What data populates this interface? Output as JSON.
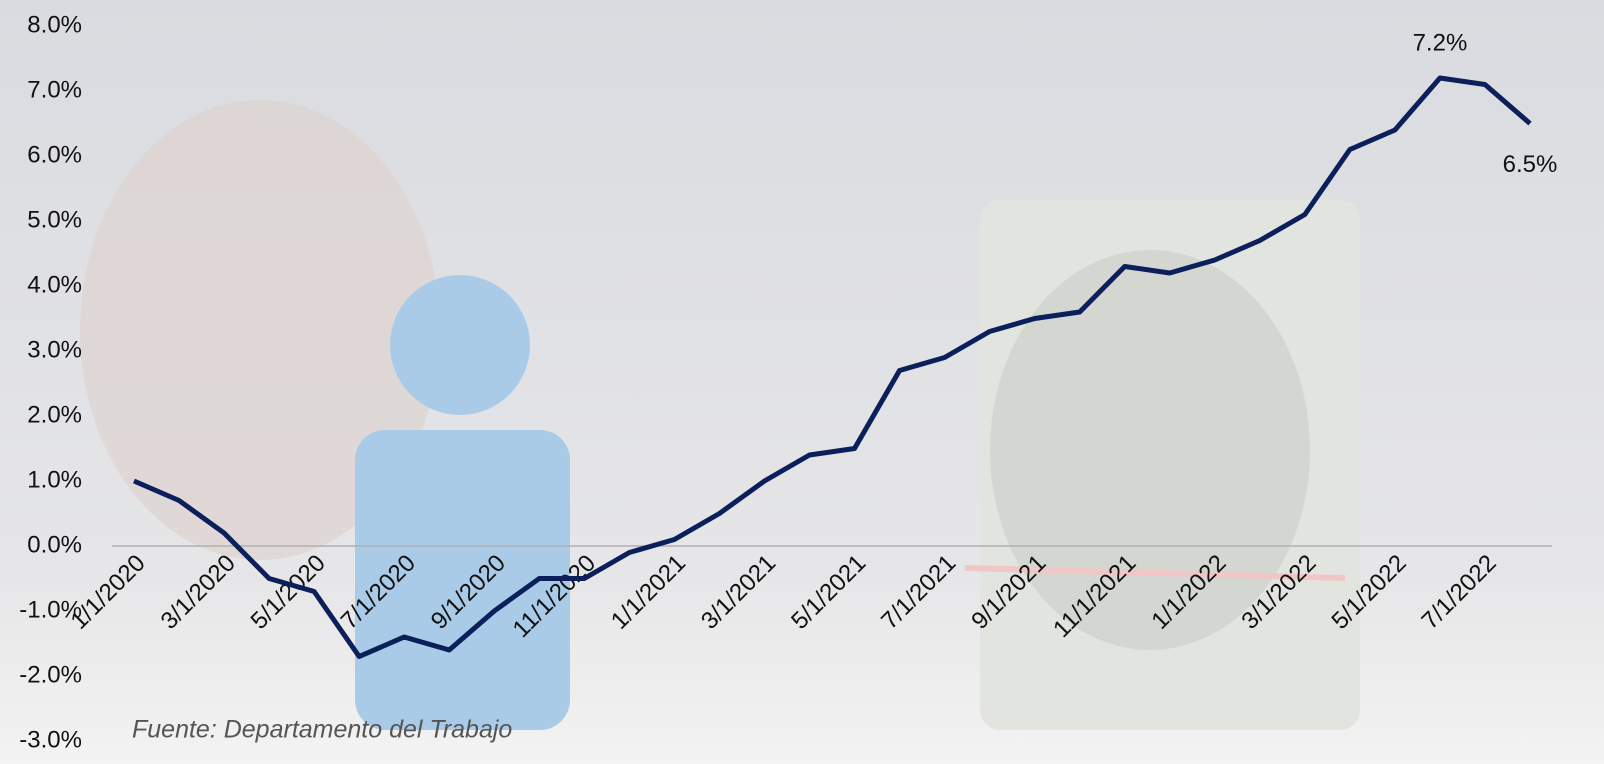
{
  "chart_data": {
    "type": "line",
    "source": "Fuente: Departamento del Trabajo",
    "categories": [
      "1/1/2020",
      null,
      "3/1/2020",
      null,
      "5/1/2020",
      null,
      "7/1/2020",
      null,
      "9/1/2020",
      null,
      "11/1/2020",
      null,
      "1/1/2021",
      null,
      "3/1/2021",
      null,
      "5/1/2021",
      null,
      "7/1/2021",
      null,
      "9/1/2021",
      null,
      "11/1/2021",
      null,
      "1/1/2022",
      null,
      "3/1/2022",
      null,
      "5/1/2022",
      null,
      "7/1/2022",
      null
    ],
    "values": [
      1.0,
      0.7,
      0.2,
      -0.5,
      -0.7,
      -1.7,
      -1.4,
      -1.6,
      -1.0,
      -0.5,
      -0.5,
      -0.1,
      0.1,
      0.5,
      1.0,
      1.4,
      1.5,
      2.7,
      2.9,
      3.3,
      3.5,
      3.6,
      4.3,
      4.2,
      4.4,
      4.7,
      5.1,
      6.1,
      6.4,
      7.2,
      7.1,
      6.5
    ],
    "value_labels": [
      null,
      null,
      null,
      null,
      null,
      null,
      null,
      null,
      null,
      null,
      null,
      null,
      null,
      null,
      null,
      null,
      null,
      null,
      null,
      null,
      null,
      null,
      null,
      null,
      null,
      null,
      null,
      null,
      null,
      "7.2%",
      null,
      "6.5%"
    ],
    "color": "#0b1f5a",
    "ylim": [
      -3.0,
      8.0
    ],
    "yticks": [
      {
        "value": 8.0,
        "label": "8.0%"
      },
      {
        "value": 7.0,
        "label": "7.0%"
      },
      {
        "value": 6.0,
        "label": "6.0%"
      },
      {
        "value": 5.0,
        "label": "5.0%"
      },
      {
        "value": 4.0,
        "label": "4.0%"
      },
      {
        "value": 3.0,
        "label": "3.0%"
      },
      {
        "value": 2.0,
        "label": "2.0%"
      },
      {
        "value": 1.0,
        "label": "1.0%"
      },
      {
        "value": 0.0,
        "label": "0.0%"
      },
      {
        "value": -1.0,
        "label": "-1.0%"
      },
      {
        "value": -2.0,
        "label": "-2.0%"
      },
      {
        "value": -3.0,
        "label": "-3.0%"
      }
    ]
  }
}
